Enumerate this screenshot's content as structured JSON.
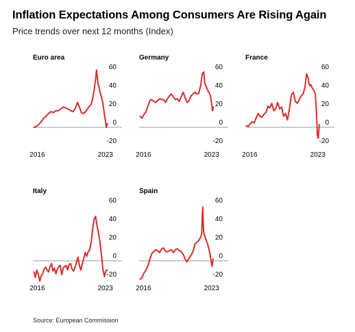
{
  "title": "Inflation Expectations Among Consumers Are Rising Again",
  "subtitle": "Price trends over next 12 months (Index)",
  "source": "Source: European Commission",
  "colors": {
    "line": "#d92b2b",
    "zero_line": "#999999",
    "text": "#000000"
  },
  "chart_data": [
    {
      "type": "line",
      "title": "Euro area",
      "ylim": [
        -25,
        65
      ],
      "yticks": [
        60,
        40,
        20,
        0,
        -20
      ],
      "xlim": [
        2015.6,
        2023.3
      ],
      "xticks": [
        "2016",
        "2023"
      ],
      "series": [
        {
          "x": [
            2015.7,
            2015.95,
            2016.2,
            2016.45,
            2016.7,
            2016.95,
            2017.2,
            2017.45,
            2017.7,
            2017.95,
            2018.2,
            2018.45,
            2018.7,
            2018.95,
            2019.2,
            2019.45,
            2019.7,
            2019.95,
            2020.15,
            2020.35,
            2020.55,
            2020.8,
            2021.05,
            2021.3,
            2021.55,
            2021.7,
            2021.85,
            2022.0,
            2022.1,
            2022.2,
            2022.25,
            2022.35,
            2022.45,
            2022.6,
            2022.75,
            2022.9,
            2023.0,
            2023.1,
            2023.2
          ],
          "y": [
            0,
            1,
            3,
            6,
            10,
            12,
            15,
            17,
            16,
            18,
            18,
            20,
            22,
            21,
            20,
            18,
            17,
            21,
            27,
            22,
            16,
            15,
            18,
            22,
            25,
            31,
            40,
            52,
            62,
            52,
            47,
            44,
            38,
            33,
            26,
            14,
            8,
            0,
            4
          ]
        }
      ]
    },
    {
      "type": "line",
      "title": "Germany",
      "ylim": [
        -25,
        65
      ],
      "yticks": [
        60,
        40,
        20,
        0,
        -20
      ],
      "xlim": [
        2015.6,
        2023.3
      ],
      "xticks": [
        "2016",
        "2023"
      ],
      "series": [
        {
          "x": [
            2015.7,
            2015.9,
            2016.1,
            2016.3,
            2016.5,
            2016.7,
            2016.9,
            2017.1,
            2017.3,
            2017.5,
            2017.7,
            2017.9,
            2018.1,
            2018.3,
            2018.5,
            2018.7,
            2018.9,
            2019.1,
            2019.3,
            2019.5,
            2019.7,
            2019.9,
            2020.1,
            2020.3,
            2020.5,
            2020.7,
            2020.9,
            2021.1,
            2021.3,
            2021.5,
            2021.7,
            2021.9,
            2022.05,
            2022.2,
            2022.3,
            2022.45,
            2022.6,
            2022.75,
            2022.9,
            2023.0,
            2023.1,
            2023.2
          ],
          "y": [
            12,
            10,
            14,
            17,
            23,
            29,
            30,
            28,
            27,
            29,
            31,
            30,
            30,
            27,
            31,
            34,
            36,
            33,
            30,
            31,
            28,
            33,
            38,
            32,
            27,
            29,
            34,
            36,
            38,
            36,
            37,
            46,
            58,
            60,
            48,
            44,
            40,
            38,
            33,
            26,
            18,
            22
          ]
        }
      ]
    },
    {
      "type": "line",
      "title": "France",
      "ylim": [
        -25,
        65
      ],
      "yticks": [
        60,
        40,
        20,
        0,
        -20
      ],
      "xlim": [
        2015.6,
        2023.3
      ],
      "xticks": [
        "2016",
        "2023"
      ],
      "series": [
        {
          "x": [
            2015.7,
            2015.9,
            2016.1,
            2016.3,
            2016.5,
            2016.7,
            2016.9,
            2017.1,
            2017.3,
            2017.5,
            2017.7,
            2017.9,
            2018.1,
            2018.3,
            2018.5,
            2018.7,
            2018.9,
            2019.1,
            2019.3,
            2019.5,
            2019.7,
            2019.9,
            2020.1,
            2020.3,
            2020.5,
            2020.7,
            2020.9,
            2021.1,
            2021.3,
            2021.5,
            2021.7,
            2021.85,
            2022.0,
            2022.1,
            2022.2,
            2022.3,
            2022.45,
            2022.6,
            2022.75,
            2022.85,
            2022.95,
            2023.05,
            2023.15
          ],
          "y": [
            2,
            1,
            4,
            6,
            5,
            10,
            15,
            12,
            11,
            14,
            16,
            23,
            21,
            26,
            18,
            20,
            27,
            20,
            22,
            12,
            15,
            8,
            20,
            35,
            38,
            28,
            26,
            30,
            34,
            36,
            44,
            58,
            54,
            47,
            45,
            46,
            42,
            40,
            36,
            18,
            -8,
            -12,
            3
          ]
        }
      ]
    },
    {
      "type": "line",
      "title": "Italy",
      "ylim": [
        -25,
        65
      ],
      "yticks": [
        60,
        40,
        20,
        0,
        -20
      ],
      "xlim": [
        2015.6,
        2023.3
      ],
      "xticks": [
        "2016",
        "2023"
      ],
      "series": [
        {
          "x": [
            2015.7,
            2015.85,
            2016.0,
            2016.15,
            2016.3,
            2016.45,
            2016.6,
            2016.75,
            2016.9,
            2017.05,
            2017.2,
            2017.35,
            2017.5,
            2017.65,
            2017.8,
            2017.95,
            2018.1,
            2018.25,
            2018.4,
            2018.55,
            2018.7,
            2018.85,
            2019.0,
            2019.15,
            2019.3,
            2019.45,
            2019.6,
            2019.75,
            2019.9,
            2020.05,
            2020.2,
            2020.35,
            2020.5,
            2020.65,
            2020.8,
            2020.95,
            2021.1,
            2021.25,
            2021.4,
            2021.55,
            2021.7,
            2021.85,
            2022.0,
            2022.15,
            2022.3,
            2022.45,
            2022.6,
            2022.75,
            2022.9,
            2023.05,
            2023.2
          ],
          "y": [
            -12,
            -18,
            -10,
            -15,
            -22,
            -16,
            -14,
            -9,
            -7,
            -10,
            -12,
            -6,
            -3,
            -11,
            -8,
            -14,
            -9,
            -6,
            -5,
            -15,
            -8,
            -6,
            -5,
            -10,
            -4,
            -3,
            -9,
            -11,
            -7,
            -2,
            4,
            -5,
            -10,
            -3,
            3,
            9,
            5,
            10,
            12,
            20,
            34,
            45,
            48,
            38,
            30,
            20,
            6,
            -9,
            -17,
            -11,
            -10
          ]
        }
      ]
    },
    {
      "type": "line",
      "title": "Spain",
      "ylim": [
        -25,
        65
      ],
      "yticks": [
        60,
        40,
        20,
        0,
        -20
      ],
      "xlim": [
        2015.6,
        2023.3
      ],
      "xticks": [
        "2016",
        "2023"
      ],
      "series": [
        {
          "x": [
            2015.7,
            2015.9,
            2016.1,
            2016.3,
            2016.5,
            2016.7,
            2016.9,
            2017.1,
            2017.3,
            2017.5,
            2017.7,
            2017.9,
            2018.1,
            2018.3,
            2018.5,
            2018.7,
            2018.9,
            2019.1,
            2019.3,
            2019.5,
            2019.7,
            2019.9,
            2020.1,
            2020.3,
            2020.5,
            2020.7,
            2020.9,
            2021.1,
            2021.3,
            2021.5,
            2021.7,
            2021.9,
            2022.0,
            2022.05,
            2022.1,
            2022.15,
            2022.2,
            2022.3,
            2022.45,
            2022.6,
            2022.75,
            2022.9,
            2023.05,
            2023.15
          ],
          "y": [
            -20,
            -18,
            -13,
            -10,
            -5,
            2,
            8,
            10,
            12,
            11,
            9,
            13,
            14,
            10,
            10,
            11,
            12,
            9,
            12,
            13,
            11,
            10,
            7,
            2,
            -1,
            3,
            6,
            10,
            18,
            20,
            22,
            26,
            30,
            48,
            58,
            40,
            30,
            27,
            22,
            18,
            12,
            3,
            -6,
            2
          ]
        }
      ]
    }
  ]
}
